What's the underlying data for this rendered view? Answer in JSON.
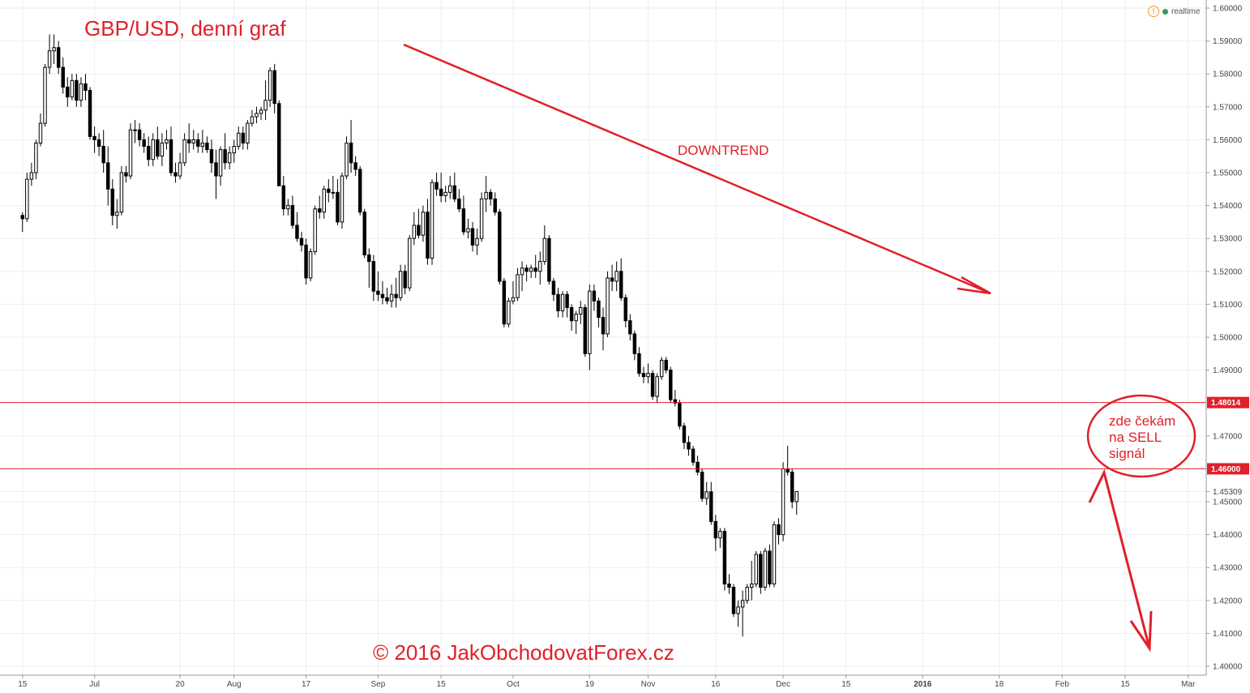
{
  "chart_data": {
    "type": "candlestick",
    "title": "GBP/USD, denní graf",
    "ylim": [
      1.4,
      1.6
    ],
    "y_ticks": [
      "1.60000",
      "1.59000",
      "1.58000",
      "1.57000",
      "1.56000",
      "1.55000",
      "1.54000",
      "1.53000",
      "1.52000",
      "1.51000",
      "1.50000",
      "1.49000",
      "1.47000",
      "1.45309",
      "1.45000",
      "1.44000",
      "1.43000",
      "1.42000",
      "1.41000",
      "1.40000"
    ],
    "x_ticks": [
      {
        "label": "15",
        "day": 0
      },
      {
        "label": "Jul",
        "day": 16
      },
      {
        "label": "20",
        "day": 35
      },
      {
        "label": "Aug",
        "day": 47
      },
      {
        "label": "17",
        "day": 63
      },
      {
        "label": "Sep",
        "day": 79
      },
      {
        "label": "15",
        "day": 93
      },
      {
        "label": "Oct",
        "day": 109
      },
      {
        "label": "19",
        "day": 126
      },
      {
        "label": "Nov",
        "day": 139
      },
      {
        "label": "16",
        "day": 154
      },
      {
        "label": "Dec",
        "day": 169
      },
      {
        "label": "15",
        "day": 183
      },
      {
        "label": "2016",
        "day": 200,
        "bold": true
      },
      {
        "label": "18",
        "day": 217
      },
      {
        "label": "Feb",
        "day": 231
      },
      {
        "label": "15",
        "day": 245
      },
      {
        "label": "Mar",
        "day": 259
      }
    ],
    "x_range": [
      -5,
      263
    ],
    "horizontal_lines": [
      {
        "value": 1.48014,
        "label": "1.48014",
        "color": "#e0202a"
      },
      {
        "value": 1.46,
        "label": "1.46000",
        "color": "#e0202a"
      }
    ],
    "candles": [
      [
        1.537,
        1.538,
        1.532,
        1.536
      ],
      [
        1.536,
        1.55,
        1.535,
        1.548
      ],
      [
        1.548,
        1.553,
        1.546,
        1.55
      ],
      [
        1.55,
        1.56,
        1.548,
        1.559
      ],
      [
        1.559,
        1.568,
        1.558,
        1.565
      ],
      [
        1.565,
        1.583,
        1.564,
        1.582
      ],
      [
        1.582,
        1.592,
        1.58,
        1.587
      ],
      [
        1.587,
        1.592,
        1.583,
        1.588
      ],
      [
        1.588,
        1.59,
        1.58,
        1.582
      ],
      [
        1.582,
        1.585,
        1.574,
        1.576
      ],
      [
        1.576,
        1.579,
        1.57,
        1.573
      ],
      [
        1.573,
        1.58,
        1.572,
        1.578
      ],
      [
        1.578,
        1.58,
        1.57,
        1.572
      ],
      [
        1.572,
        1.579,
        1.57,
        1.577
      ],
      [
        1.577,
        1.58,
        1.572,
        1.575
      ],
      [
        1.575,
        1.576,
        1.56,
        1.561
      ],
      [
        1.561,
        1.564,
        1.556,
        1.56
      ],
      [
        1.56,
        1.562,
        1.555,
        1.558
      ],
      [
        1.558,
        1.563,
        1.55,
        1.553
      ],
      [
        1.553,
        1.558,
        1.54,
        1.545
      ],
      [
        1.545,
        1.548,
        1.534,
        1.537
      ],
      [
        1.537,
        1.542,
        1.533,
        1.538
      ],
      [
        1.538,
        1.552,
        1.537,
        1.55
      ],
      [
        1.55,
        1.552,
        1.547,
        1.549
      ],
      [
        1.549,
        1.565,
        1.548,
        1.563
      ],
      [
        1.563,
        1.566,
        1.559,
        1.563
      ],
      [
        1.563,
        1.565,
        1.558,
        1.56
      ],
      [
        1.56,
        1.562,
        1.556,
        1.558
      ],
      [
        1.558,
        1.561,
        1.552,
        1.554
      ],
      [
        1.554,
        1.562,
        1.552,
        1.56
      ],
      [
        1.56,
        1.564,
        1.554,
        1.555
      ],
      [
        1.555,
        1.562,
        1.552,
        1.559
      ],
      [
        1.559,
        1.563,
        1.557,
        1.56
      ],
      [
        1.56,
        1.564,
        1.549,
        1.55
      ],
      [
        1.55,
        1.553,
        1.547,
        1.549
      ],
      [
        1.549,
        1.556,
        1.548,
        1.553
      ],
      [
        1.553,
        1.562,
        1.552,
        1.56
      ],
      [
        1.56,
        1.565,
        1.556,
        1.559
      ],
      [
        1.559,
        1.563,
        1.557,
        1.56
      ],
      [
        1.56,
        1.562,
        1.556,
        1.558
      ],
      [
        1.558,
        1.563,
        1.556,
        1.559
      ],
      [
        1.559,
        1.561,
        1.556,
        1.557
      ],
      [
        1.557,
        1.56,
        1.55,
        1.553
      ],
      [
        1.553,
        1.557,
        1.542,
        1.549
      ],
      [
        1.549,
        1.558,
        1.546,
        1.557
      ],
      [
        1.557,
        1.562,
        1.551,
        1.553
      ],
      [
        1.553,
        1.558,
        1.551,
        1.556
      ],
      [
        1.556,
        1.56,
        1.553,
        1.558
      ],
      [
        1.558,
        1.564,
        1.557,
        1.562
      ],
      [
        1.562,
        1.564,
        1.557,
        1.559
      ],
      [
        1.559,
        1.566,
        1.557,
        1.565
      ],
      [
        1.565,
        1.569,
        1.564,
        1.567
      ],
      [
        1.567,
        1.57,
        1.565,
        1.568
      ],
      [
        1.568,
        1.57,
        1.566,
        1.569
      ],
      [
        1.569,
        1.578,
        1.566,
        1.572
      ],
      [
        1.572,
        1.582,
        1.57,
        1.581
      ],
      [
        1.581,
        1.583,
        1.568,
        1.571
      ],
      [
        1.571,
        1.572,
        1.546,
        1.546
      ],
      [
        1.546,
        1.549,
        1.537,
        1.539
      ],
      [
        1.539,
        1.542,
        1.537,
        1.54
      ],
      [
        1.54,
        1.543,
        1.533,
        1.534
      ],
      [
        1.534,
        1.538,
        1.529,
        1.53
      ],
      [
        1.53,
        1.532,
        1.526,
        1.528
      ],
      [
        1.528,
        1.53,
        1.516,
        1.518
      ],
      [
        1.518,
        1.527,
        1.517,
        1.526
      ],
      [
        1.526,
        1.54,
        1.525,
        1.539
      ],
      [
        1.539,
        1.543,
        1.536,
        1.538
      ],
      [
        1.538,
        1.546,
        1.536,
        1.545
      ],
      [
        1.545,
        1.548,
        1.541,
        1.544
      ],
      [
        1.544,
        1.549,
        1.542,
        1.544
      ],
      [
        1.544,
        1.548,
        1.534,
        1.535
      ],
      [
        1.535,
        1.55,
        1.533,
        1.549
      ],
      [
        1.549,
        1.561,
        1.548,
        1.559
      ],
      [
        1.559,
        1.566,
        1.55,
        1.553
      ],
      [
        1.553,
        1.555,
        1.549,
        1.551
      ],
      [
        1.551,
        1.552,
        1.537,
        1.538
      ],
      [
        1.538,
        1.539,
        1.524,
        1.525
      ],
      [
        1.525,
        1.527,
        1.515,
        1.523
      ],
      [
        1.523,
        1.525,
        1.511,
        1.514
      ],
      [
        1.514,
        1.52,
        1.511,
        1.513
      ],
      [
        1.513,
        1.517,
        1.51,
        1.512
      ],
      [
        1.512,
        1.515,
        1.51,
        1.511
      ],
      [
        1.511,
        1.516,
        1.509,
        1.513
      ],
      [
        1.513,
        1.518,
        1.509,
        1.512
      ],
      [
        1.512,
        1.522,
        1.511,
        1.52
      ],
      [
        1.52,
        1.522,
        1.513,
        1.515
      ],
      [
        1.515,
        1.531,
        1.514,
        1.53
      ],
      [
        1.53,
        1.538,
        1.528,
        1.534
      ],
      [
        1.534,
        1.539,
        1.53,
        1.531
      ],
      [
        1.531,
        1.54,
        1.529,
        1.538
      ],
      [
        1.538,
        1.542,
        1.522,
        1.524
      ],
      [
        1.524,
        1.548,
        1.522,
        1.547
      ],
      [
        1.547,
        1.55,
        1.543,
        1.545
      ],
      [
        1.545,
        1.55,
        1.541,
        1.543
      ],
      [
        1.543,
        1.546,
        1.541,
        1.544
      ],
      [
        1.544,
        1.549,
        1.542,
        1.546
      ],
      [
        1.546,
        1.55,
        1.541,
        1.542
      ],
      [
        1.542,
        1.545,
        1.538,
        1.539
      ],
      [
        1.539,
        1.543,
        1.531,
        1.532
      ],
      [
        1.532,
        1.536,
        1.53,
        1.533
      ],
      [
        1.533,
        1.535,
        1.526,
        1.528
      ],
      [
        1.528,
        1.533,
        1.525,
        1.53
      ],
      [
        1.53,
        1.544,
        1.529,
        1.542
      ],
      [
        1.542,
        1.549,
        1.538,
        1.544
      ],
      [
        1.544,
        1.545,
        1.54,
        1.542
      ],
      [
        1.542,
        1.544,
        1.537,
        1.538
      ],
      [
        1.538,
        1.539,
        1.516,
        1.517
      ],
      [
        1.517,
        1.518,
        1.503,
        1.504
      ],
      [
        1.504,
        1.512,
        1.503,
        1.511
      ],
      [
        1.511,
        1.517,
        1.51,
        1.512
      ],
      [
        1.512,
        1.521,
        1.511,
        1.519
      ],
      [
        1.519,
        1.523,
        1.514,
        1.521
      ],
      [
        1.521,
        1.522,
        1.517,
        1.52
      ],
      [
        1.52,
        1.522,
        1.518,
        1.521
      ],
      [
        1.521,
        1.525,
        1.518,
        1.52
      ],
      [
        1.52,
        1.526,
        1.516,
        1.523
      ],
      [
        1.523,
        1.534,
        1.522,
        1.53
      ],
      [
        1.53,
        1.531,
        1.516,
        1.517
      ],
      [
        1.517,
        1.518,
        1.511,
        1.513
      ],
      [
        1.513,
        1.515,
        1.506,
        1.508
      ],
      [
        1.508,
        1.514,
        1.506,
        1.513
      ],
      [
        1.513,
        1.514,
        1.506,
        1.509
      ],
      [
        1.509,
        1.51,
        1.502,
        1.505
      ],
      [
        1.505,
        1.508,
        1.501,
        1.507
      ],
      [
        1.507,
        1.511,
        1.504,
        1.509
      ],
      [
        1.509,
        1.51,
        1.494,
        1.495
      ],
      [
        1.495,
        1.516,
        1.49,
        1.514
      ],
      [
        1.514,
        1.516,
        1.508,
        1.511
      ],
      [
        1.511,
        1.512,
        1.503,
        1.506
      ],
      [
        1.506,
        1.509,
        1.496,
        1.501
      ],
      [
        1.501,
        1.52,
        1.5,
        1.518
      ],
      [
        1.518,
        1.522,
        1.514,
        1.517
      ],
      [
        1.517,
        1.523,
        1.514,
        1.52
      ],
      [
        1.52,
        1.524,
        1.511,
        1.512
      ],
      [
        1.512,
        1.513,
        1.503,
        1.505
      ],
      [
        1.505,
        1.507,
        1.499,
        1.501
      ],
      [
        1.501,
        1.502,
        1.493,
        1.495
      ],
      [
        1.495,
        1.497,
        1.488,
        1.489
      ],
      [
        1.489,
        1.491,
        1.486,
        1.488
      ],
      [
        1.488,
        1.492,
        1.486,
        1.489
      ],
      [
        1.489,
        1.49,
        1.481,
        1.482
      ],
      [
        1.482,
        1.489,
        1.48,
        1.488
      ],
      [
        1.488,
        1.494,
        1.487,
        1.493
      ],
      [
        1.493,
        1.494,
        1.489,
        1.49
      ],
      [
        1.49,
        1.491,
        1.48,
        1.481
      ],
      [
        1.481,
        1.484,
        1.479,
        1.48
      ],
      [
        1.48,
        1.481,
        1.472,
        1.473
      ],
      [
        1.473,
        1.474,
        1.466,
        1.468
      ],
      [
        1.468,
        1.47,
        1.464,
        1.466
      ],
      [
        1.466,
        1.467,
        1.461,
        1.462
      ],
      [
        1.462,
        1.464,
        1.458,
        1.459
      ],
      [
        1.459,
        1.46,
        1.45,
        1.451
      ],
      [
        1.451,
        1.456,
        1.449,
        1.453
      ],
      [
        1.453,
        1.456,
        1.443,
        1.444
      ],
      [
        1.444,
        1.446,
        1.435,
        1.439
      ],
      [
        1.439,
        1.442,
        1.436,
        1.441
      ],
      [
        1.441,
        1.442,
        1.423,
        1.425
      ],
      [
        1.425,
        1.428,
        1.422,
        1.424
      ],
      [
        1.424,
        1.425,
        1.415,
        1.416
      ],
      [
        1.416,
        1.42,
        1.412,
        1.418
      ],
      [
        1.418,
        1.423,
        1.409,
        1.42
      ],
      [
        1.42,
        1.425,
        1.419,
        1.424
      ],
      [
        1.424,
        1.432,
        1.42,
        1.425
      ],
      [
        1.425,
        1.435,
        1.424,
        1.434
      ],
      [
        1.434,
        1.435,
        1.422,
        1.424
      ],
      [
        1.424,
        1.436,
        1.423,
        1.435
      ],
      [
        1.435,
        1.437,
        1.424,
        1.425
      ],
      [
        1.425,
        1.444,
        1.424,
        1.443
      ],
      [
        1.443,
        1.445,
        1.437,
        1.44
      ],
      [
        1.44,
        1.462,
        1.438,
        1.46
      ],
      [
        1.46,
        1.467,
        1.458,
        1.459
      ],
      [
        1.459,
        1.46,
        1.448,
        1.45
      ],
      [
        1.45,
        1.453,
        1.446,
        1.4531
      ]
    ]
  },
  "texts": {
    "title": "GBP/USD, denní graf",
    "downtrend_label": "DOWNTREND",
    "watermark": "© 2016 JakObchodovatForex.cz",
    "note": "zde čekám\nna SELL\nsignál",
    "realtime_label": "realtime",
    "realtime_warn": "!"
  },
  "colors": {
    "accent_red": "#e0202a",
    "bull_fill": "#ffffff",
    "bear_fill": "#000000",
    "grid": "#eeeeee",
    "realtime_dot": "#2e9d59",
    "warning": "#f39c12"
  }
}
